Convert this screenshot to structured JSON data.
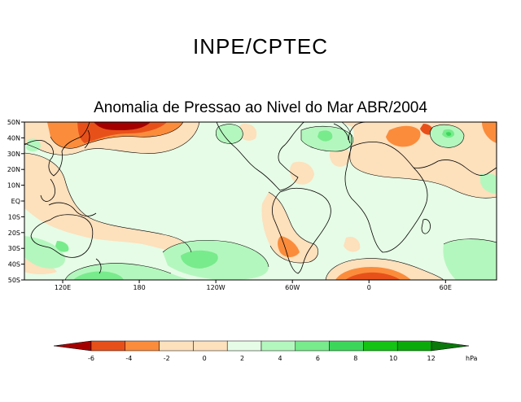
{
  "header": {
    "title": "INPE/CPTEC"
  },
  "map": {
    "title": "Anomalia de Pressao ao Nivel do Mar ABR/2004",
    "lat_labels": [
      "50N",
      "40N",
      "30N",
      "20N",
      "10N",
      "EQ",
      "10S",
      "20S",
      "30S",
      "40S",
      "50S"
    ],
    "lon_labels": [
      "120E",
      "180",
      "120W",
      "60W",
      "0",
      "60E"
    ]
  },
  "legend": {
    "unit": "hPa",
    "ticks": [
      "-6",
      "-4",
      "-2",
      "0",
      "2",
      "4",
      "6",
      "8",
      "10",
      "12"
    ],
    "colors": {
      "c_lt_m6": "#a50000",
      "c_m6_m4": "#e8501a",
      "c_m4_m2": "#fb8c3c",
      "c_m2_0": "#fde0bc",
      "c_0_2": "#e6fce6",
      "c_2_4": "#b4f7be",
      "c_4_6": "#78eb8c",
      "c_6_8": "#3cd75a",
      "c_8_10": "#14c314",
      "c_10_12": "#0aaa0a",
      "c_gt_12": "#0a780a"
    }
  }
}
